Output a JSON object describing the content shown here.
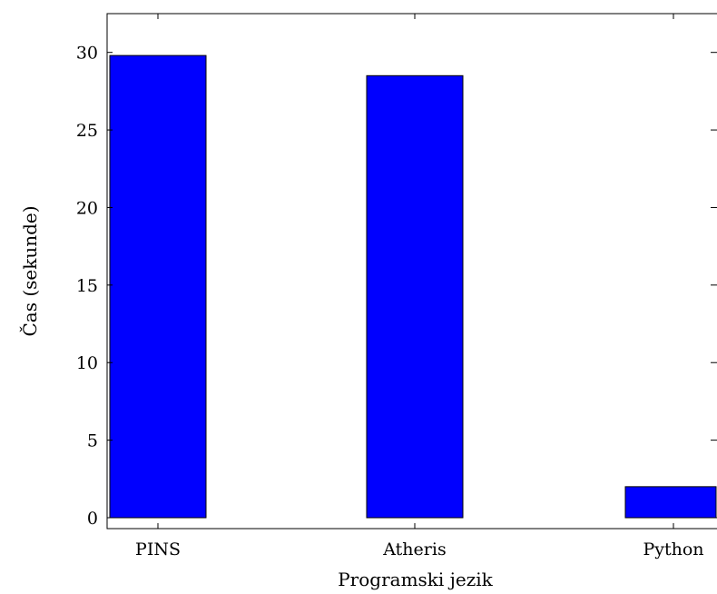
{
  "chart_data": {
    "type": "bar",
    "categories": [
      "PINS",
      "Atheris",
      "Python"
    ],
    "values": [
      29.8,
      28.5,
      2.0
    ],
    "xlabel": "Programski jezik",
    "ylabel": "Čas (sekunde)",
    "ylim": [
      0,
      32.5
    ],
    "yticks": [
      0,
      5,
      10,
      15,
      20,
      25,
      30
    ],
    "bar_color": "#0000ff",
    "bar_edge_color": "#000000",
    "grid": false,
    "legend": "none"
  }
}
